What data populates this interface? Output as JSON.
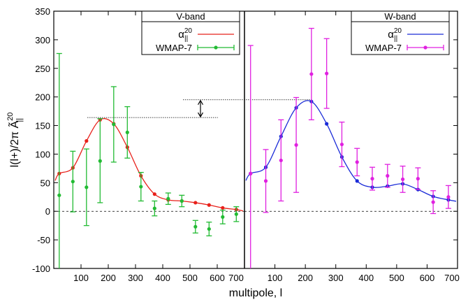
{
  "chart_data": {
    "type": "scatter",
    "xlabel": "multipole, l",
    "ylabel": "l(l+)/2π  Ã",
    "ylabel_sup": "20",
    "ylabel_sub": "||",
    "ylim": [
      -100,
      350
    ],
    "yticks": [
      -100,
      -50,
      0,
      50,
      100,
      150,
      200,
      250,
      300,
      350
    ],
    "xticks_left": [
      100,
      200,
      300,
      400,
      500,
      600,
      700
    ],
    "xticks_right": [
      100,
      200,
      300,
      400,
      500,
      600,
      700
    ],
    "xlim_left": [
      0,
      700
    ],
    "xlim_right": [
      0,
      700
    ],
    "grid": false,
    "zero_line": "dashed",
    "panels": [
      {
        "title": "V-band",
        "legend_position": "top-right",
        "legend_model_base": "α",
        "legend_model_sup": "20",
        "legend_model_sub": "||",
        "legend_data": "WMAP-7",
        "model_color": "#e8201a",
        "data_color": "#22bb33",
        "model_points": [
          {
            "x": 20,
            "y": 66
          },
          {
            "x": 70,
            "y": 76
          },
          {
            "x": 120,
            "y": 123
          },
          {
            "x": 170,
            "y": 160
          },
          {
            "x": 220,
            "y": 153
          },
          {
            "x": 270,
            "y": 112
          },
          {
            "x": 320,
            "y": 62
          },
          {
            "x": 370,
            "y": 30
          },
          {
            "x": 420,
            "y": 20
          },
          {
            "x": 470,
            "y": 18
          },
          {
            "x": 520,
            "y": 15
          },
          {
            "x": 570,
            "y": 11
          },
          {
            "x": 620,
            "y": 6
          },
          {
            "x": 670,
            "y": 3
          }
        ],
        "data_points": [
          {
            "x": 20,
            "y": 28,
            "lo": -100,
            "hi": 276
          },
          {
            "x": 70,
            "y": 52,
            "lo": -1,
            "hi": 105
          },
          {
            "x": 120,
            "y": 42,
            "lo": -25,
            "hi": 109
          },
          {
            "x": 170,
            "y": 88,
            "lo": 15,
            "hi": 162
          },
          {
            "x": 220,
            "y": 152,
            "lo": 86,
            "hi": 218
          },
          {
            "x": 270,
            "y": 138,
            "lo": 93,
            "hi": 183
          },
          {
            "x": 320,
            "y": 43,
            "lo": 18,
            "hi": 68
          },
          {
            "x": 370,
            "y": 5,
            "lo": -8,
            "hi": 18
          },
          {
            "x": 420,
            "y": 22,
            "lo": 12,
            "hi": 32
          },
          {
            "x": 470,
            "y": 18,
            "lo": 8,
            "hi": 28
          },
          {
            "x": 520,
            "y": -27,
            "lo": -38,
            "hi": -16
          },
          {
            "x": 570,
            "y": -31,
            "lo": -43,
            "hi": -19
          },
          {
            "x": 620,
            "y": -10,
            "lo": -22,
            "hi": 2
          },
          {
            "x": 670,
            "y": -5,
            "lo": -18,
            "hi": 8
          }
        ]
      },
      {
        "title": "W-band",
        "legend_position": "top-right",
        "legend_model_base": "α",
        "legend_model_sup": "20",
        "legend_model_sub": "||",
        "legend_data": "WMAP-7",
        "model_color": "#1a2bd8",
        "data_color": "#e020e0",
        "model_points": [
          {
            "x": 20,
            "y": 66
          },
          {
            "x": 70,
            "y": 77
          },
          {
            "x": 120,
            "y": 131
          },
          {
            "x": 170,
            "y": 181
          },
          {
            "x": 220,
            "y": 192
          },
          {
            "x": 270,
            "y": 153
          },
          {
            "x": 320,
            "y": 95
          },
          {
            "x": 370,
            "y": 53
          },
          {
            "x": 420,
            "y": 42
          },
          {
            "x": 470,
            "y": 44
          },
          {
            "x": 520,
            "y": 48
          },
          {
            "x": 570,
            "y": 38
          },
          {
            "x": 620,
            "y": 26
          },
          {
            "x": 670,
            "y": 20
          }
        ],
        "data_points": [
          {
            "x": 20,
            "y": 66,
            "lo": -100,
            "hi": 290
          },
          {
            "x": 70,
            "y": 53,
            "lo": -2,
            "hi": 108
          },
          {
            "x": 120,
            "y": 89,
            "lo": 18,
            "hi": 160
          },
          {
            "x": 170,
            "y": 116,
            "lo": 33,
            "hi": 199
          },
          {
            "x": 220,
            "y": 240,
            "lo": 160,
            "hi": 320
          },
          {
            "x": 270,
            "y": 241,
            "lo": 180,
            "hi": 302
          },
          {
            "x": 320,
            "y": 117,
            "lo": 78,
            "hi": 156
          },
          {
            "x": 370,
            "y": 86,
            "lo": 62,
            "hi": 110
          },
          {
            "x": 420,
            "y": 57,
            "lo": 37,
            "hi": 77
          },
          {
            "x": 470,
            "y": 62,
            "lo": 42,
            "hi": 82
          },
          {
            "x": 520,
            "y": 56,
            "lo": 33,
            "hi": 79
          },
          {
            "x": 570,
            "y": 57,
            "lo": 38,
            "hi": 76
          },
          {
            "x": 620,
            "y": 16,
            "lo": -4,
            "hi": 36
          },
          {
            "x": 670,
            "y": 25,
            "lo": 5,
            "hi": 45
          }
        ]
      }
    ],
    "annotation": {
      "type": "double-arrow",
      "y_from": 164,
      "y_to": 195
    }
  }
}
